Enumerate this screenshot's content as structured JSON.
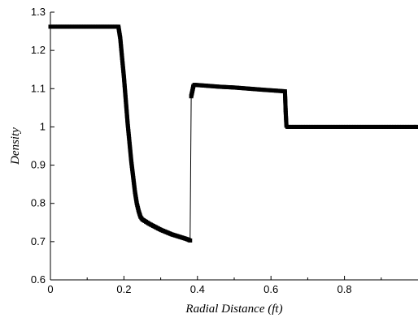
{
  "chart_data": {
    "type": "line",
    "title": "",
    "xlabel": "Radial Distance (ft)",
    "ylabel": "Density",
    "xlim": [
      0,
      1.0
    ],
    "ylim": [
      0.6,
      1.3
    ],
    "x_ticks": [
      "0",
      "0.2",
      "0.4",
      "0.6",
      "0.8"
    ],
    "y_ticks": [
      "0.6",
      "0.7",
      "0.8",
      "0.9",
      "1",
      "1.1",
      "1.2",
      "1.3"
    ],
    "grid": false,
    "legend": "none",
    "colors": {
      "series": "#000000",
      "axes": "#000000",
      "background": "#ffffff"
    },
    "series": [
      {
        "marker": "square",
        "points": [
          [
            0.0,
            1.262
          ],
          [
            0.05,
            1.262
          ],
          [
            0.1,
            1.262
          ],
          [
            0.15,
            1.262
          ],
          [
            0.185,
            1.262
          ],
          [
            0.19,
            1.232
          ],
          [
            0.195,
            1.18
          ],
          [
            0.2,
            1.13
          ],
          [
            0.205,
            1.07
          ],
          [
            0.21,
            1.01
          ],
          [
            0.215,
            0.96
          ],
          [
            0.22,
            0.91
          ],
          [
            0.225,
            0.87
          ],
          [
            0.23,
            0.83
          ],
          [
            0.235,
            0.8
          ],
          [
            0.24,
            0.78
          ],
          [
            0.245,
            0.765
          ],
          [
            0.25,
            0.758
          ],
          [
            0.26,
            0.752
          ],
          [
            0.27,
            0.746
          ],
          [
            0.28,
            0.741
          ],
          [
            0.29,
            0.736
          ],
          [
            0.3,
            0.731
          ],
          [
            0.31,
            0.727
          ],
          [
            0.32,
            0.723
          ],
          [
            0.33,
            0.719
          ],
          [
            0.34,
            0.716
          ],
          [
            0.35,
            0.713
          ],
          [
            0.36,
            0.71
          ],
          [
            0.37,
            0.707
          ],
          [
            0.38,
            0.703
          ],
          [
            0.383,
            1.08
          ],
          [
            0.386,
            1.093
          ],
          [
            0.389,
            1.107
          ],
          [
            0.392,
            1.11
          ],
          [
            0.42,
            1.108
          ],
          [
            0.46,
            1.105
          ],
          [
            0.5,
            1.103
          ],
          [
            0.54,
            1.1
          ],
          [
            0.58,
            1.097
          ],
          [
            0.61,
            1.095
          ],
          [
            0.638,
            1.093
          ],
          [
            0.64,
            1.04
          ],
          [
            0.642,
            1.003
          ],
          [
            0.645,
            1.0
          ],
          [
            0.7,
            1.0
          ],
          [
            0.8,
            1.0
          ],
          [
            0.9,
            1.0
          ],
          [
            1.0,
            1.0
          ]
        ]
      }
    ]
  }
}
